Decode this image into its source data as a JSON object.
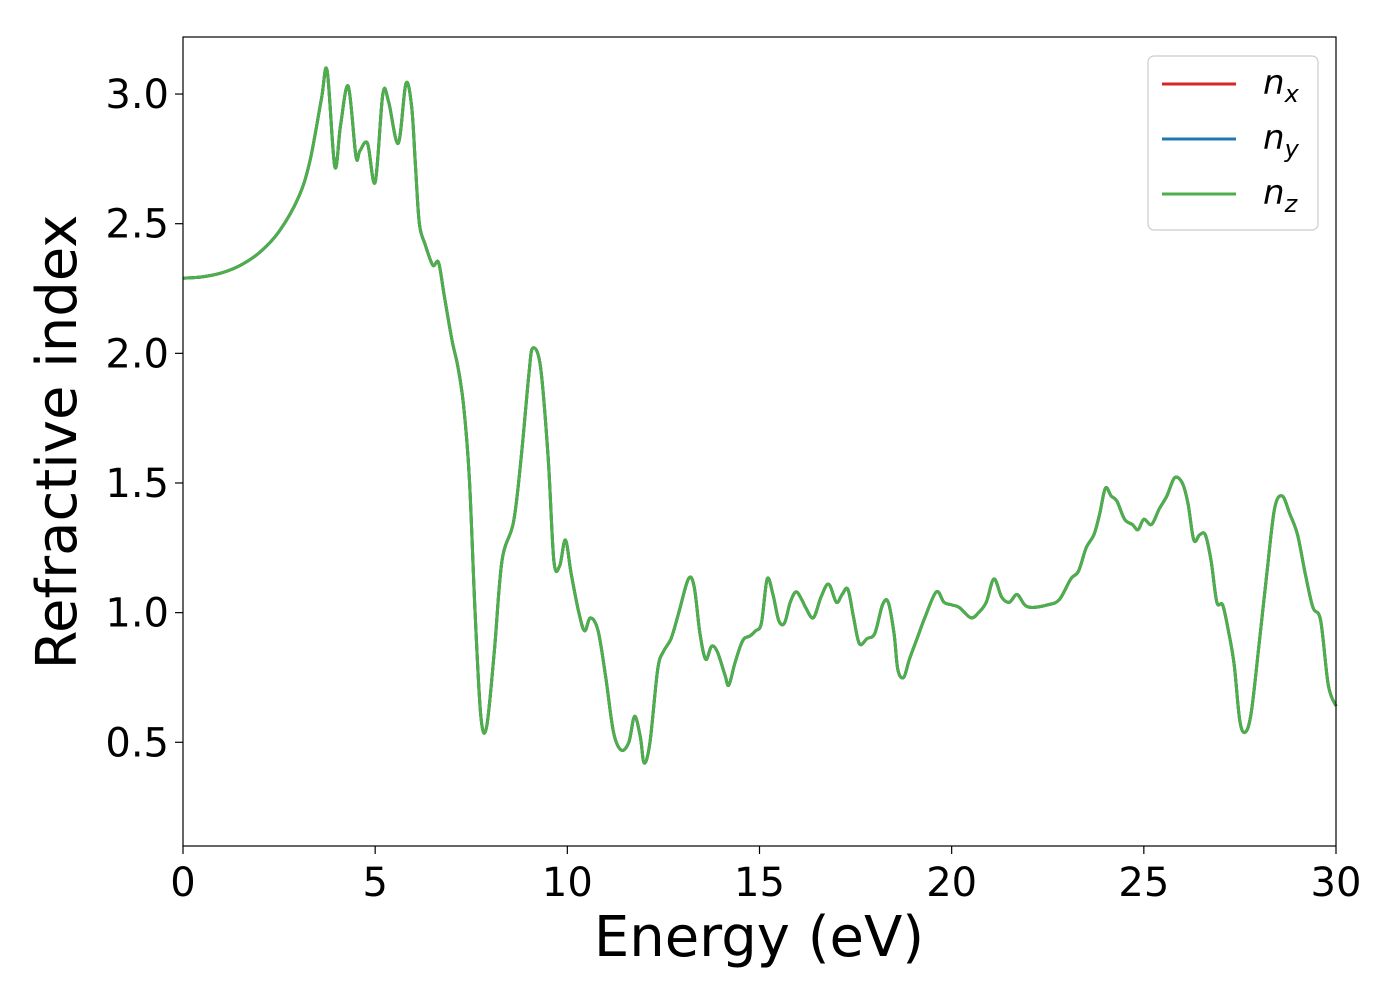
{
  "chart_data": {
    "type": "line",
    "xlabel": "Energy (eV)",
    "ylabel": "Refractive index",
    "xlim": [
      0,
      30
    ],
    "ylim": [
      0.1,
      3.22
    ],
    "xticks": [
      0,
      5,
      10,
      15,
      20,
      25,
      30
    ],
    "xtick_labels": [
      "0",
      "5",
      "10",
      "15",
      "20",
      "25",
      "30"
    ],
    "yticks": [
      0.5,
      1.0,
      1.5,
      2.0,
      2.5,
      3.0
    ],
    "ytick_labels": [
      "0.5",
      "1.0",
      "1.5",
      "2.0",
      "2.5",
      "3.0"
    ],
    "grid": false,
    "legend": {
      "position": "top-right",
      "entries": [
        {
          "base": "n",
          "sub": "x",
          "color": "#d62728"
        },
        {
          "base": "n",
          "sub": "y",
          "color": "#1f77b4"
        },
        {
          "base": "n",
          "sub": "z",
          "color": "#4daf4a"
        }
      ]
    },
    "x": [
      0,
      0.5,
      1.0,
      1.5,
      2.0,
      2.5,
      3.0,
      3.3,
      3.6,
      3.75,
      3.95,
      4.1,
      4.3,
      4.5,
      4.6,
      4.8,
      5.0,
      5.2,
      5.35,
      5.6,
      5.8,
      5.95,
      6.05,
      6.15,
      6.3,
      6.5,
      6.65,
      6.8,
      7.0,
      7.15,
      7.3,
      7.45,
      7.6,
      7.75,
      7.9,
      8.1,
      8.3,
      8.6,
      8.8,
      9.0,
      9.1,
      9.3,
      9.5,
      9.65,
      9.8,
      9.95,
      10.1,
      10.3,
      10.45,
      10.6,
      10.8,
      11.0,
      11.2,
      11.4,
      11.6,
      11.75,
      11.9,
      12.0,
      12.15,
      12.35,
      12.5,
      12.7,
      12.9,
      13.15,
      13.3,
      13.45,
      13.6,
      13.75,
      13.9,
      14.1,
      14.2,
      14.35,
      14.5,
      14.6,
      14.75,
      14.9,
      15.05,
      15.2,
      15.35,
      15.5,
      15.65,
      15.8,
      15.95,
      16.1,
      16.2,
      16.4,
      16.6,
      16.8,
      17.0,
      17.15,
      17.3,
      17.45,
      17.6,
      17.8,
      18.0,
      18.2,
      18.35,
      18.5,
      18.6,
      18.75,
      18.9,
      19.1,
      19.3,
      19.6,
      19.8,
      20.0,
      20.2,
      20.5,
      20.7,
      20.9,
      21.1,
      21.3,
      21.5,
      21.7,
      21.9,
      22.1,
      22.5,
      22.8,
      23.1,
      23.3,
      23.5,
      23.7,
      23.85,
      24.0,
      24.15,
      24.3,
      24.5,
      24.7,
      24.85,
      25.0,
      25.2,
      25.4,
      25.6,
      25.8,
      26.0,
      26.15,
      26.3,
      26.45,
      26.6,
      26.75,
      26.9,
      27.05,
      27.2,
      27.35,
      27.5,
      27.65,
      27.8,
      28.0,
      28.2,
      28.4,
      28.6,
      28.8,
      29.0,
      29.2,
      29.4,
      29.6,
      29.8,
      30.0
    ],
    "series": [
      {
        "name": "n_x",
        "values": [
          2.29,
          2.295,
          2.31,
          2.34,
          2.39,
          2.47,
          2.6,
          2.74,
          2.98,
          3.09,
          2.72,
          2.88,
          3.03,
          2.76,
          2.78,
          2.81,
          2.66,
          3.0,
          2.97,
          2.81,
          3.04,
          2.95,
          2.72,
          2.5,
          2.42,
          2.34,
          2.35,
          2.22,
          2.05,
          1.95,
          1.8,
          1.52,
          1.0,
          0.6,
          0.56,
          0.85,
          1.2,
          1.35,
          1.6,
          1.92,
          2.02,
          1.95,
          1.6,
          1.2,
          1.18,
          1.28,
          1.15,
          1.0,
          0.93,
          0.98,
          0.93,
          0.75,
          0.54,
          0.47,
          0.5,
          0.6,
          0.52,
          0.42,
          0.5,
          0.78,
          0.85,
          0.9,
          1.0,
          1.13,
          1.1,
          0.92,
          0.82,
          0.87,
          0.85,
          0.76,
          0.72,
          0.8,
          0.87,
          0.9,
          0.91,
          0.93,
          0.96,
          1.13,
          1.07,
          0.97,
          0.96,
          1.04,
          1.08,
          1.05,
          1.02,
          0.98,
          1.06,
          1.11,
          1.04,
          1.07,
          1.09,
          0.98,
          0.88,
          0.9,
          0.92,
          1.03,
          1.04,
          0.92,
          0.78,
          0.75,
          0.82,
          0.9,
          0.98,
          1.08,
          1.04,
          1.03,
          1.02,
          0.98,
          1.0,
          1.04,
          1.13,
          1.06,
          1.04,
          1.07,
          1.03,
          1.02,
          1.03,
          1.05,
          1.13,
          1.16,
          1.25,
          1.3,
          1.38,
          1.48,
          1.45,
          1.43,
          1.36,
          1.34,
          1.32,
          1.36,
          1.34,
          1.4,
          1.45,
          1.52,
          1.5,
          1.42,
          1.28,
          1.3,
          1.3,
          1.2,
          1.04,
          1.03,
          0.93,
          0.8,
          0.58,
          0.54,
          0.62,
          0.88,
          1.15,
          1.4,
          1.45,
          1.38,
          1.3,
          1.15,
          1.02,
          0.97,
          0.72,
          0.64
        ]
      },
      {
        "name": "n_y",
        "values": [
          2.29,
          2.295,
          2.31,
          2.34,
          2.39,
          2.47,
          2.6,
          2.74,
          2.98,
          3.09,
          2.72,
          2.88,
          3.03,
          2.76,
          2.78,
          2.81,
          2.66,
          3.0,
          2.97,
          2.81,
          3.04,
          2.95,
          2.72,
          2.5,
          2.42,
          2.34,
          2.35,
          2.22,
          2.05,
          1.95,
          1.8,
          1.52,
          1.0,
          0.6,
          0.56,
          0.85,
          1.2,
          1.35,
          1.6,
          1.92,
          2.02,
          1.95,
          1.6,
          1.2,
          1.18,
          1.28,
          1.15,
          1.0,
          0.93,
          0.98,
          0.93,
          0.75,
          0.54,
          0.47,
          0.5,
          0.6,
          0.52,
          0.42,
          0.5,
          0.78,
          0.85,
          0.9,
          1.0,
          1.13,
          1.1,
          0.92,
          0.82,
          0.87,
          0.85,
          0.76,
          0.72,
          0.8,
          0.87,
          0.9,
          0.91,
          0.93,
          0.96,
          1.13,
          1.07,
          0.97,
          0.96,
          1.04,
          1.08,
          1.05,
          1.02,
          0.98,
          1.06,
          1.11,
          1.04,
          1.07,
          1.09,
          0.98,
          0.88,
          0.9,
          0.92,
          1.03,
          1.04,
          0.92,
          0.78,
          0.75,
          0.82,
          0.9,
          0.98,
          1.08,
          1.04,
          1.03,
          1.02,
          0.98,
          1.0,
          1.04,
          1.13,
          1.06,
          1.04,
          1.07,
          1.03,
          1.02,
          1.03,
          1.05,
          1.13,
          1.16,
          1.25,
          1.3,
          1.38,
          1.48,
          1.45,
          1.43,
          1.36,
          1.34,
          1.32,
          1.36,
          1.34,
          1.4,
          1.45,
          1.52,
          1.5,
          1.42,
          1.28,
          1.3,
          1.3,
          1.2,
          1.04,
          1.03,
          0.93,
          0.8,
          0.58,
          0.54,
          0.62,
          0.88,
          1.15,
          1.4,
          1.45,
          1.38,
          1.3,
          1.15,
          1.02,
          0.97,
          0.72,
          0.64
        ]
      },
      {
        "name": "n_z",
        "values": [
          2.29,
          2.295,
          2.31,
          2.34,
          2.39,
          2.47,
          2.6,
          2.74,
          2.98,
          3.09,
          2.72,
          2.88,
          3.03,
          2.76,
          2.78,
          2.81,
          2.66,
          3.0,
          2.97,
          2.81,
          3.04,
          2.95,
          2.72,
          2.5,
          2.42,
          2.34,
          2.35,
          2.22,
          2.05,
          1.95,
          1.8,
          1.52,
          1.0,
          0.6,
          0.56,
          0.85,
          1.2,
          1.35,
          1.6,
          1.92,
          2.02,
          1.95,
          1.6,
          1.2,
          1.18,
          1.28,
          1.15,
          1.0,
          0.93,
          0.98,
          0.93,
          0.75,
          0.54,
          0.47,
          0.5,
          0.6,
          0.52,
          0.42,
          0.5,
          0.78,
          0.85,
          0.9,
          1.0,
          1.13,
          1.1,
          0.92,
          0.82,
          0.87,
          0.85,
          0.76,
          0.72,
          0.8,
          0.87,
          0.9,
          0.91,
          0.93,
          0.96,
          1.13,
          1.07,
          0.97,
          0.96,
          1.04,
          1.08,
          1.05,
          1.02,
          0.98,
          1.06,
          1.11,
          1.04,
          1.07,
          1.09,
          0.98,
          0.88,
          0.9,
          0.92,
          1.03,
          1.04,
          0.92,
          0.78,
          0.75,
          0.82,
          0.9,
          0.98,
          1.08,
          1.04,
          1.03,
          1.02,
          0.98,
          1.0,
          1.04,
          1.13,
          1.06,
          1.04,
          1.07,
          1.03,
          1.02,
          1.03,
          1.05,
          1.13,
          1.16,
          1.25,
          1.3,
          1.38,
          1.48,
          1.45,
          1.43,
          1.36,
          1.34,
          1.32,
          1.36,
          1.34,
          1.4,
          1.45,
          1.52,
          1.5,
          1.42,
          1.28,
          1.3,
          1.3,
          1.2,
          1.04,
          1.03,
          0.93,
          0.8,
          0.58,
          0.54,
          0.62,
          0.88,
          1.15,
          1.4,
          1.45,
          1.38,
          1.3,
          1.15,
          1.02,
          0.97,
          0.72,
          0.64
        ]
      }
    ]
  }
}
